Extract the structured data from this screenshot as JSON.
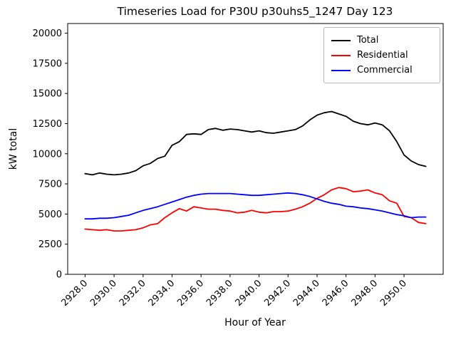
{
  "figure": {
    "title": "Timeseries Load for P30U p30uhs5_1247  Day 123",
    "xlabel": "Hour of Year",
    "ylabel": "kW total"
  },
  "chart_data": {
    "type": "line",
    "title": "Timeseries Load for P30U p30uhs5_1247  Day 123",
    "xlabel": "Hour of Year",
    "ylabel": "kW total",
    "grid": false,
    "legend_position": "upper right",
    "xlim": [
      2926.8,
      2952.7
    ],
    "ylim": [
      0,
      20800
    ],
    "xtick_values": [
      2928,
      2930,
      2932,
      2934,
      2936,
      2938,
      2940,
      2942,
      2944,
      2946,
      2948,
      2950
    ],
    "xtick_labels": [
      "2928.0",
      "2930.0",
      "2932.0",
      "2934.0",
      "2936.0",
      "2938.0",
      "2940.0",
      "2942.0",
      "2944.0",
      "2946.0",
      "2948.0",
      "2950.0"
    ],
    "ytick_values": [
      0,
      2500,
      5000,
      7500,
      10000,
      12500,
      15000,
      17500,
      20000
    ],
    "ytick_labels": [
      "0",
      "2500",
      "5000",
      "7500",
      "10000",
      "12500",
      "15000",
      "17500",
      "20000"
    ],
    "x": [
      2928.0,
      2928.5,
      2929.0,
      2929.5,
      2930.0,
      2930.5,
      2931.0,
      2931.5,
      2932.0,
      2932.5,
      2933.0,
      2933.5,
      2934.0,
      2934.5,
      2935.0,
      2935.5,
      2936.0,
      2936.5,
      2937.0,
      2937.5,
      2938.0,
      2938.5,
      2939.0,
      2939.5,
      2940.0,
      2940.5,
      2941.0,
      2941.5,
      2942.0,
      2942.5,
      2943.0,
      2943.5,
      2944.0,
      2944.5,
      2945.0,
      2945.5,
      2946.0,
      2946.5,
      2947.0,
      2947.5,
      2948.0,
      2948.5,
      2949.0,
      2949.5,
      2950.0,
      2950.5,
      2951.0,
      2951.5
    ],
    "series": [
      {
        "name": "Total",
        "color": "#000000",
        "values": [
          8350,
          8250,
          8400,
          8300,
          8250,
          8300,
          8400,
          8600,
          9000,
          9200,
          9600,
          9800,
          10700,
          11000,
          11600,
          11650,
          11600,
          12000,
          12100,
          11950,
          12050,
          12000,
          11900,
          11800,
          11900,
          11750,
          11700,
          11800,
          11900,
          12000,
          12300,
          12800,
          13200,
          13400,
          13500,
          13300,
          13100,
          12700,
          12500,
          12400,
          12550,
          12400,
          11900,
          11000,
          9900,
          9400,
          9100,
          8950
        ]
      },
      {
        "name": "Residential",
        "color": "#ff0000",
        "values": [
          3750,
          3700,
          3650,
          3700,
          3600,
          3600,
          3650,
          3700,
          3850,
          4100,
          4200,
          4700,
          5100,
          5450,
          5250,
          5600,
          5500,
          5400,
          5400,
          5300,
          5250,
          5100,
          5150,
          5300,
          5150,
          5100,
          5200,
          5200,
          5250,
          5400,
          5600,
          5900,
          6300,
          6600,
          7000,
          7200,
          7100,
          6850,
          6900,
          7000,
          6750,
          6600,
          6100,
          5900,
          4800,
          4700,
          4300,
          4200
        ]
      },
      {
        "name": "Commercial",
        "color": "#0000ff",
        "values": [
          4600,
          4600,
          4650,
          4650,
          4700,
          4800,
          4900,
          5100,
          5300,
          5450,
          5600,
          5800,
          6000,
          6200,
          6400,
          6550,
          6650,
          6700,
          6700,
          6700,
          6700,
          6650,
          6600,
          6550,
          6550,
          6600,
          6650,
          6700,
          6750,
          6700,
          6600,
          6450,
          6250,
          6050,
          5900,
          5800,
          5650,
          5600,
          5500,
          5450,
          5350,
          5250,
          5100,
          4950,
          4850,
          4700,
          4750,
          4750
        ]
      }
    ]
  }
}
